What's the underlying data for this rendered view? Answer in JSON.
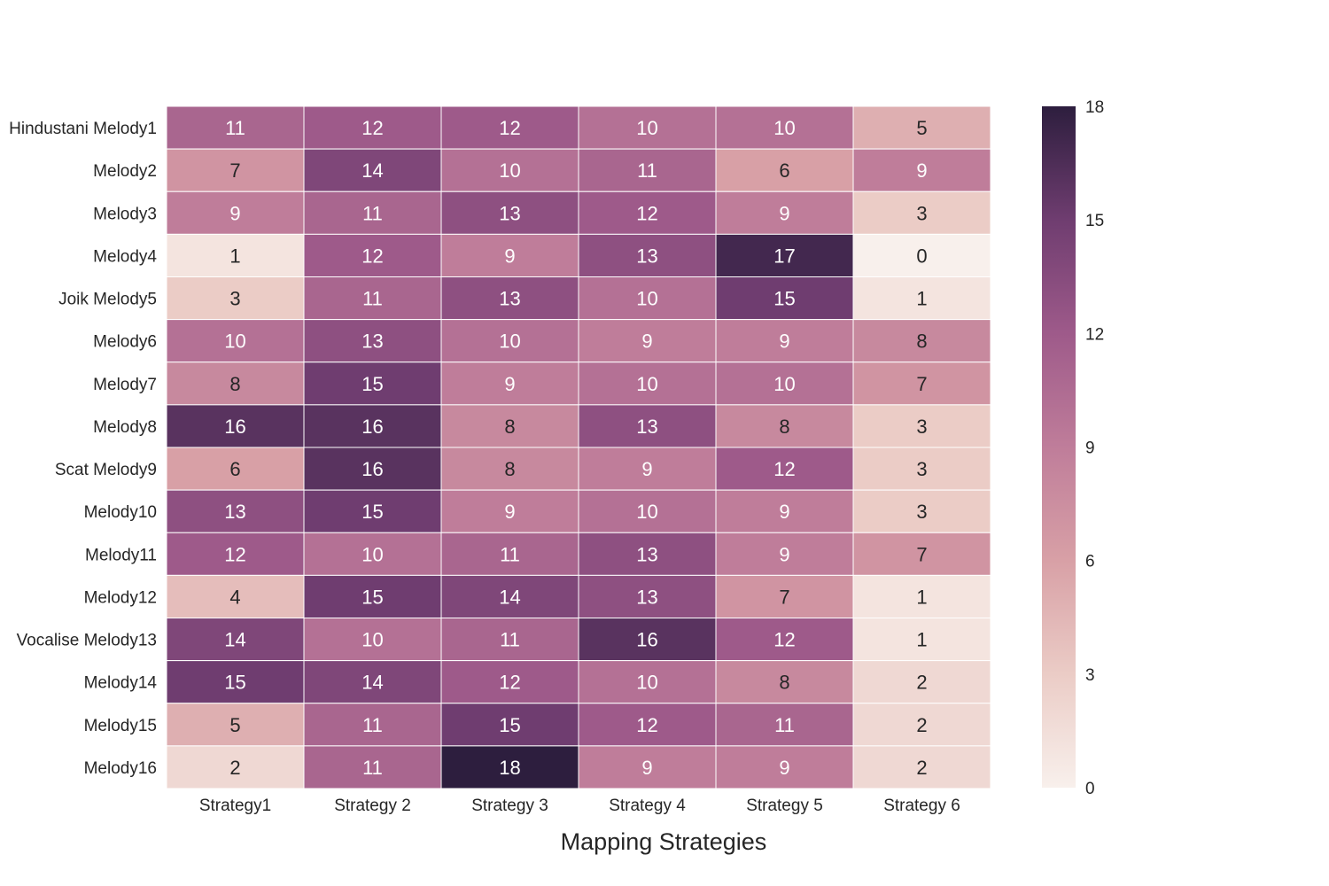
{
  "chart_data": {
    "type": "heatmap",
    "title": "",
    "xlabel": "Mapping Strategies",
    "ylabel": "",
    "columns": [
      "Strategy1",
      "Strategy 2",
      "Strategy 3",
      "Strategy 4",
      "Strategy 5",
      "Strategy 6"
    ],
    "rows": [
      "Hindustani Melody1",
      "Melody2",
      "Melody3",
      "Melody4",
      "Joik Melody5",
      "Melody6",
      "Melody7",
      "Melody8",
      "Scat Melody9",
      "Melody10",
      "Melody11",
      "Melody12",
      "Vocalise Melody13",
      "Melody14",
      "Melody15",
      "Melody16"
    ],
    "values": [
      [
        11,
        12,
        12,
        10,
        10,
        5
      ],
      [
        7,
        14,
        10,
        11,
        6,
        9
      ],
      [
        9,
        11,
        13,
        12,
        9,
        3
      ],
      [
        1,
        12,
        9,
        13,
        17,
        0
      ],
      [
        3,
        11,
        13,
        10,
        15,
        1
      ],
      [
        10,
        13,
        10,
        9,
        9,
        8
      ],
      [
        8,
        15,
        9,
        10,
        10,
        7
      ],
      [
        16,
        16,
        8,
        13,
        8,
        3
      ],
      [
        6,
        16,
        8,
        9,
        12,
        3
      ],
      [
        13,
        15,
        9,
        10,
        9,
        3
      ],
      [
        12,
        10,
        11,
        13,
        9,
        7
      ],
      [
        4,
        15,
        14,
        13,
        7,
        1
      ],
      [
        14,
        10,
        11,
        16,
        12,
        1
      ],
      [
        15,
        14,
        12,
        10,
        8,
        2
      ],
      [
        5,
        11,
        15,
        12,
        11,
        2
      ],
      [
        2,
        11,
        18,
        9,
        9,
        2
      ]
    ],
    "vmin": 0,
    "vmax": 18,
    "colorbar_ticks": [
      "0",
      "3",
      "6",
      "9",
      "12",
      "15",
      "18"
    ],
    "colormap": [
      "#f8f0ec",
      "#ebccc6",
      "#d8a0a6",
      "#bf7d9a",
      "#9e5a8a",
      "#6f3d70",
      "#2d1e3e"
    ],
    "annotations": true,
    "grid": false,
    "cell_border_color": "#ffffff"
  }
}
